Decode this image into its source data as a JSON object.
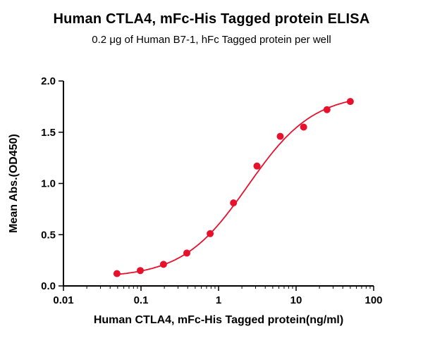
{
  "chart_data": {
    "type": "scatter",
    "title": "Human CTLA4, mFc-His Tagged protein ELISA",
    "subtitle": "0.2 μg of Human B7-1, hFc Tagged protein per well",
    "xlabel": "Human CTLA4, mFc-His Tagged protein(ng/ml)",
    "ylabel": "Mean Abs.(OD450)",
    "x_scale": "log10",
    "xlim": [
      0.01,
      100
    ],
    "ylim": [
      0.0,
      2.0
    ],
    "x_ticks": [
      0.01,
      0.1,
      1,
      10,
      100
    ],
    "x_tick_labels": [
      "0.01",
      "0.1",
      "1",
      "10",
      "100"
    ],
    "y_ticks": [
      0.0,
      0.5,
      1.0,
      1.5,
      2.0
    ],
    "y_tick_labels": [
      "0.0",
      "0.5",
      "1.0",
      "1.5",
      "2.0"
    ],
    "grid": false,
    "legend": null,
    "series": [
      {
        "name": "Human CTLA4, mFc-His Tagged protein",
        "color": "#e8112d",
        "marker": "circle",
        "x": [
          0.049,
          0.098,
          0.195,
          0.39,
          0.78,
          1.56,
          3.13,
          6.25,
          12.5,
          25,
          50
        ],
        "y": [
          0.12,
          0.15,
          0.21,
          0.32,
          0.51,
          0.81,
          1.17,
          1.46,
          1.55,
          1.72,
          1.8
        ]
      }
    ],
    "fit_curve": {
      "type": "4PL",
      "bottom": 0.08,
      "top": 1.88,
      "ec50": 2.4,
      "hill": 1.03
    }
  }
}
